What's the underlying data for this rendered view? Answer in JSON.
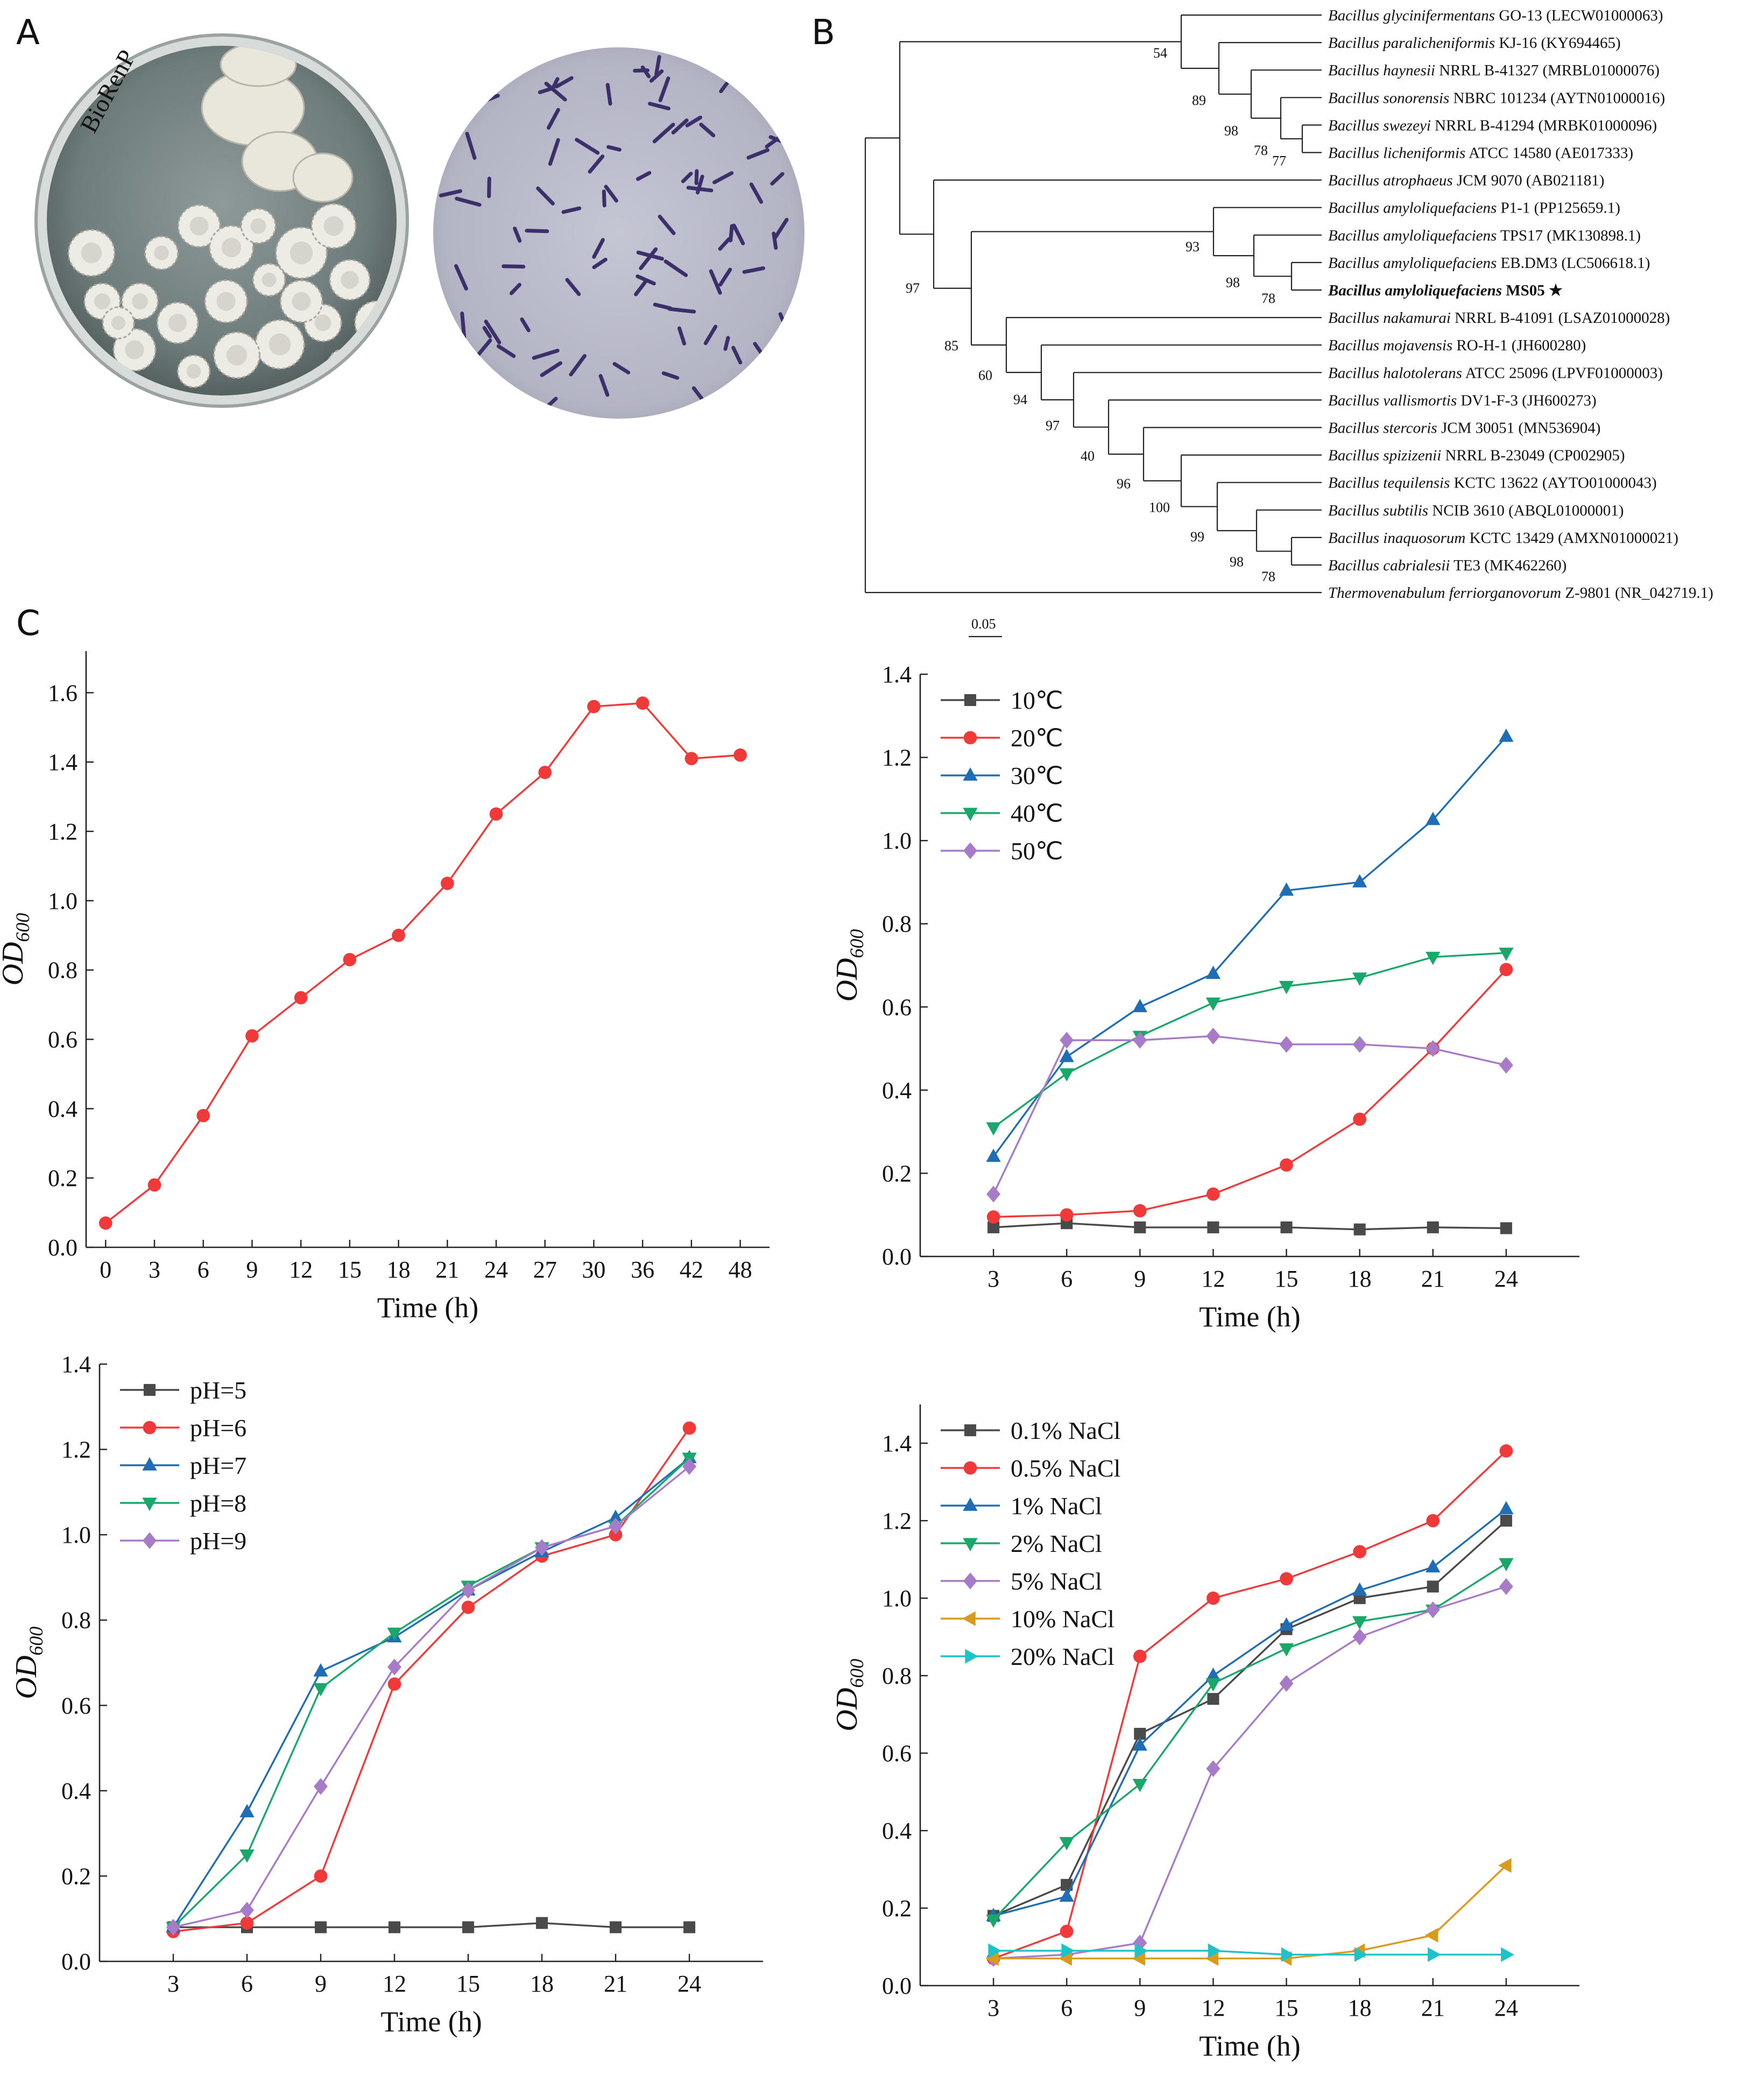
{
  "panels": {
    "a": "A",
    "b": "B",
    "c": "C"
  },
  "photos": {
    "plate_watermark": "BioRenP"
  },
  "tree": {
    "scale_label": "0.05",
    "taxa": [
      {
        "genus_species": "Bacillus glycinifermentans",
        "strain": "GO-13 (LECW01000063)",
        "bold": false
      },
      {
        "genus_species": "Bacillus paralicheniformis",
        "strain": "KJ-16 (KY694465)",
        "bold": false
      },
      {
        "genus_species": "Bacillus haynesii",
        "strain": "NRRL B-41327 (MRBL01000076)",
        "bold": false
      },
      {
        "genus_species": "Bacillus sonorensis",
        "strain": "NBRC 101234 (AYTN01000016)",
        "bold": false
      },
      {
        "genus_species": "Bacillus swezeyi",
        "strain": "NRRL B-41294 (MRBK01000096)",
        "bold": false
      },
      {
        "genus_species": "Bacillus licheniformis",
        "strain": "ATCC 14580 (AE017333)",
        "bold": false
      },
      {
        "genus_species": "Bacillus atrophaeus",
        "strain": "JCM 9070 (AB021181)",
        "bold": false
      },
      {
        "genus_species": "Bacillus amyloliquefaciens",
        "strain": "P1-1 (PP125659.1)",
        "bold": false
      },
      {
        "genus_species": "Bacillus amyloliquefaciens",
        "strain": "TPS17 (MK130898.1)",
        "bold": false
      },
      {
        "genus_species": "Bacillus amyloliquefaciens",
        "strain": "EB.DM3 (LC506618.1)",
        "bold": false
      },
      {
        "genus_species": "Bacillus amyloliquefaciens",
        "strain": "MS05 ★",
        "bold": true
      },
      {
        "genus_species": "Bacillus nakamurai",
        "strain": "NRRL B-41091 (LSAZ01000028)",
        "bold": false
      },
      {
        "genus_species": "Bacillus mojavensis",
        "strain": "RO-H-1 (JH600280)",
        "bold": false
      },
      {
        "genus_species": "Bacillus halotolerans",
        "strain": "ATCC 25096 (LPVF01000003)",
        "bold": false
      },
      {
        "genus_species": "Bacillus vallismortis",
        "strain": "DV1-F-3 (JH600273)",
        "bold": false
      },
      {
        "genus_species": "Bacillus stercoris",
        "strain": "JCM 30051 (MN536904)",
        "bold": false
      },
      {
        "genus_species": "Bacillus spizizenii",
        "strain": "NRRL B-23049 (CP002905)",
        "bold": false
      },
      {
        "genus_species": "Bacillus tequilensis",
        "strain": "KCTC 13622 (AYTO01000043)",
        "bold": false
      },
      {
        "genus_species": "Bacillus subtilis",
        "strain": "NCIB 3610 (ABQL01000001)",
        "bold": false
      },
      {
        "genus_species": "Bacillus inaquosorum",
        "strain": "KCTC 13429 (AMXN01000021)",
        "bold": false
      },
      {
        "genus_species": "Bacillus cabrialesii",
        "strain": "TE3 (MK462260)",
        "bold": false
      },
      {
        "genus_species": "Thermovenabulum ferriorganovorum",
        "strain": "Z-9801 (NR_042719.1)",
        "bold": false
      }
    ],
    "bootstrap": [
      "54",
      "89",
      "98",
      "78",
      "77",
      "97",
      "93",
      "98",
      "78",
      "85",
      "60",
      "94",
      "97",
      "40",
      "96",
      "100",
      "99",
      "98",
      "78"
    ]
  },
  "chart_data": [
    {
      "id": "growth",
      "type": "line",
      "xlabel": "Time (h)",
      "ylabel": "OD",
      "ylabel_sub": "600",
      "x": [
        0,
        3,
        6,
        9,
        12,
        15,
        18,
        21,
        24,
        27,
        30,
        36,
        42,
        48
      ],
      "x_ticks": [
        "0",
        "3",
        "6",
        "9",
        "12",
        "15",
        "18",
        "21",
        "24",
        "27",
        "30",
        "36",
        "42",
        "48"
      ],
      "y_ticks": [
        "0.0",
        "0.2",
        "0.4",
        "0.6",
        "0.8",
        "1.0",
        "1.2",
        "1.4",
        "1.6"
      ],
      "ylim": [
        0,
        1.72
      ],
      "grid": false,
      "legend": "none",
      "series": [
        {
          "color": "#f03a3a",
          "marker": "circle",
          "values": [
            0.07,
            0.18,
            0.38,
            0.61,
            0.72,
            0.83,
            0.9,
            1.05,
            1.25,
            1.37,
            1.56,
            1.57,
            1.41,
            1.42
          ]
        }
      ]
    },
    {
      "id": "temperature",
      "type": "line",
      "xlabel": "Time (h)",
      "ylabel": "OD",
      "ylabel_sub": "600",
      "x": [
        3,
        6,
        9,
        12,
        15,
        18,
        21,
        24
      ],
      "x_ticks": [
        "3",
        "6",
        "9",
        "12",
        "15",
        "18",
        "21",
        "24"
      ],
      "y_ticks": [
        "0.0",
        "0.2",
        "0.4",
        "0.6",
        "0.8",
        "1.0",
        "1.2",
        "1.4"
      ],
      "ylim": [
        0,
        1.4
      ],
      "grid": false,
      "legend": "top-left",
      "series": [
        {
          "name": "10℃",
          "color": "#4a4a4a",
          "marker": "square",
          "values": [
            0.07,
            0.08,
            0.07,
            0.07,
            0.07,
            0.065,
            0.07,
            0.068
          ]
        },
        {
          "name": "20℃",
          "color": "#f03a3a",
          "marker": "circle",
          "values": [
            0.095,
            0.1,
            0.11,
            0.15,
            0.22,
            0.33,
            0.5,
            0.69
          ]
        },
        {
          "name": "30℃",
          "color": "#1f6db5",
          "marker": "triangle-up",
          "values": [
            0.24,
            0.48,
            0.6,
            0.68,
            0.88,
            0.9,
            1.05,
            1.25
          ]
        },
        {
          "name": "40℃",
          "color": "#1aa86a",
          "marker": "triangle-down",
          "values": [
            0.31,
            0.44,
            0.53,
            0.61,
            0.65,
            0.67,
            0.72,
            0.73
          ]
        },
        {
          "name": "50℃",
          "color": "#a87bc9",
          "marker": "diamond",
          "values": [
            0.15,
            0.52,
            0.52,
            0.53,
            0.51,
            0.51,
            0.5,
            0.46
          ]
        }
      ]
    },
    {
      "id": "ph",
      "type": "line",
      "xlabel": "Time (h)",
      "ylabel": "OD",
      "ylabel_sub": "600",
      "x": [
        3,
        6,
        9,
        12,
        15,
        18,
        21,
        24
      ],
      "x_ticks": [
        "3",
        "6",
        "9",
        "12",
        "15",
        "18",
        "21",
        "24"
      ],
      "y_ticks": [
        "0.0",
        "0.2",
        "0.4",
        "0.6",
        "0.8",
        "1.0",
        "1.2",
        "1.4"
      ],
      "ylim": [
        0,
        1.4
      ],
      "grid": false,
      "legend": "top-left",
      "series": [
        {
          "name": "pH=5",
          "color": "#4a4a4a",
          "marker": "square",
          "values": [
            0.08,
            0.08,
            0.08,
            0.08,
            0.08,
            0.09,
            0.08,
            0.08
          ]
        },
        {
          "name": "pH=6",
          "color": "#f03a3a",
          "marker": "circle",
          "values": [
            0.07,
            0.09,
            0.2,
            0.65,
            0.83,
            0.95,
            1.0,
            1.25
          ]
        },
        {
          "name": "pH=7",
          "color": "#1f6db5",
          "marker": "triangle-up",
          "values": [
            0.08,
            0.35,
            0.68,
            0.76,
            0.87,
            0.96,
            1.04,
            1.18
          ]
        },
        {
          "name": "pH=8",
          "color": "#1aa86a",
          "marker": "triangle-down",
          "values": [
            0.08,
            0.25,
            0.64,
            0.77,
            0.88,
            0.97,
            1.02,
            1.18
          ]
        },
        {
          "name": "pH=9",
          "color": "#a87bc9",
          "marker": "diamond",
          "values": [
            0.08,
            0.12,
            0.41,
            0.69,
            0.87,
            0.97,
            1.02,
            1.16
          ]
        }
      ]
    },
    {
      "id": "nacl",
      "type": "line",
      "xlabel": "Time (h)",
      "ylabel": "OD",
      "ylabel_sub": "600",
      "x": [
        3,
        6,
        9,
        12,
        15,
        18,
        21,
        24
      ],
      "x_ticks": [
        "3",
        "6",
        "9",
        "12",
        "15",
        "18",
        "21",
        "24"
      ],
      "y_ticks": [
        "0.0",
        "0.2",
        "0.4",
        "0.6",
        "0.8",
        "1.0",
        "1.2",
        "1.4"
      ],
      "ylim": [
        0,
        1.5
      ],
      "grid": false,
      "legend": "top-left",
      "series": [
        {
          "name": "0.1% NaCl",
          "color": "#4a4a4a",
          "marker": "square",
          "values": [
            0.18,
            0.26,
            0.65,
            0.74,
            0.92,
            1.0,
            1.03,
            1.2
          ]
        },
        {
          "name": "0.5% NaCl",
          "color": "#f03a3a",
          "marker": "circle",
          "values": [
            0.07,
            0.14,
            0.85,
            1.0,
            1.05,
            1.12,
            1.2,
            1.38
          ]
        },
        {
          "name": "1% NaCl",
          "color": "#1f6db5",
          "marker": "triangle-up",
          "values": [
            0.18,
            0.23,
            0.62,
            0.8,
            0.93,
            1.02,
            1.08,
            1.23
          ]
        },
        {
          "name": "2% NaCl",
          "color": "#1aa86a",
          "marker": "triangle-down",
          "values": [
            0.17,
            0.37,
            0.52,
            0.78,
            0.87,
            0.94,
            0.97,
            1.09
          ]
        },
        {
          "name": "5% NaCl",
          "color": "#a87bc9",
          "marker": "diamond",
          "values": [
            0.07,
            0.08,
            0.11,
            0.56,
            0.78,
            0.9,
            0.97,
            1.03
          ]
        },
        {
          "name": "10% NaCl",
          "color": "#d99b1c",
          "marker": "triangle-left",
          "values": [
            0.07,
            0.07,
            0.07,
            0.07,
            0.07,
            0.09,
            0.13,
            0.31
          ]
        },
        {
          "name": "20% NaCl",
          "color": "#1ec2c9",
          "marker": "triangle-right",
          "values": [
            0.09,
            0.09,
            0.09,
            0.09,
            0.08,
            0.08,
            0.08,
            0.08
          ]
        }
      ]
    }
  ]
}
